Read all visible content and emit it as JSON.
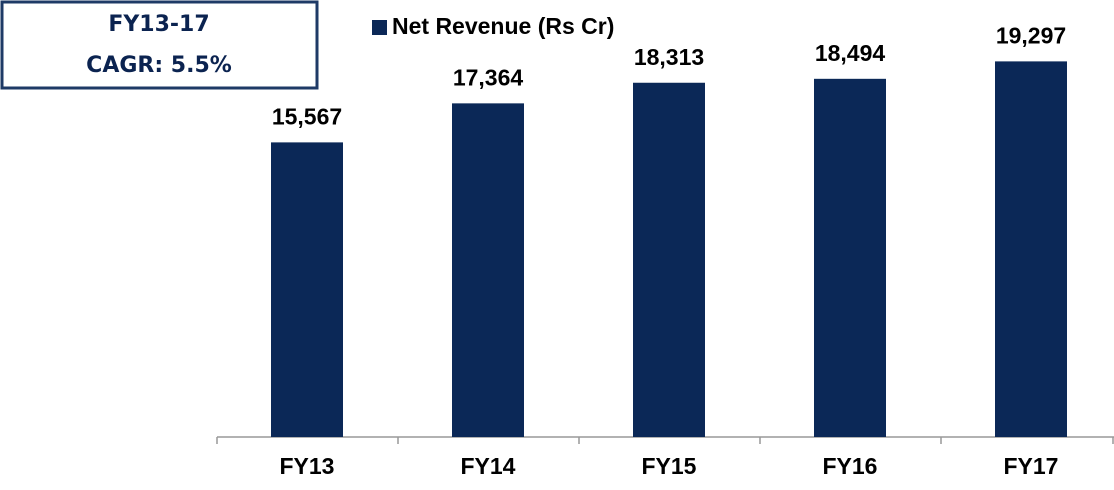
{
  "chart_data": {
    "type": "bar",
    "legend": "Net Revenue  (Rs Cr)",
    "annotation": [
      "FY13-17",
      "CAGR: 5.5%"
    ],
    "categories": [
      "FY13",
      "FY14",
      "FY15",
      "FY16",
      "FY17"
    ],
    "values": [
      15567,
      17364,
      18313,
      18494,
      19297
    ],
    "value_labels": [
      "15,567",
      "17,364",
      "18,313",
      "18,494",
      "19,297"
    ],
    "color": "#0b2857",
    "ylim": [
      2000,
      21000
    ]
  }
}
